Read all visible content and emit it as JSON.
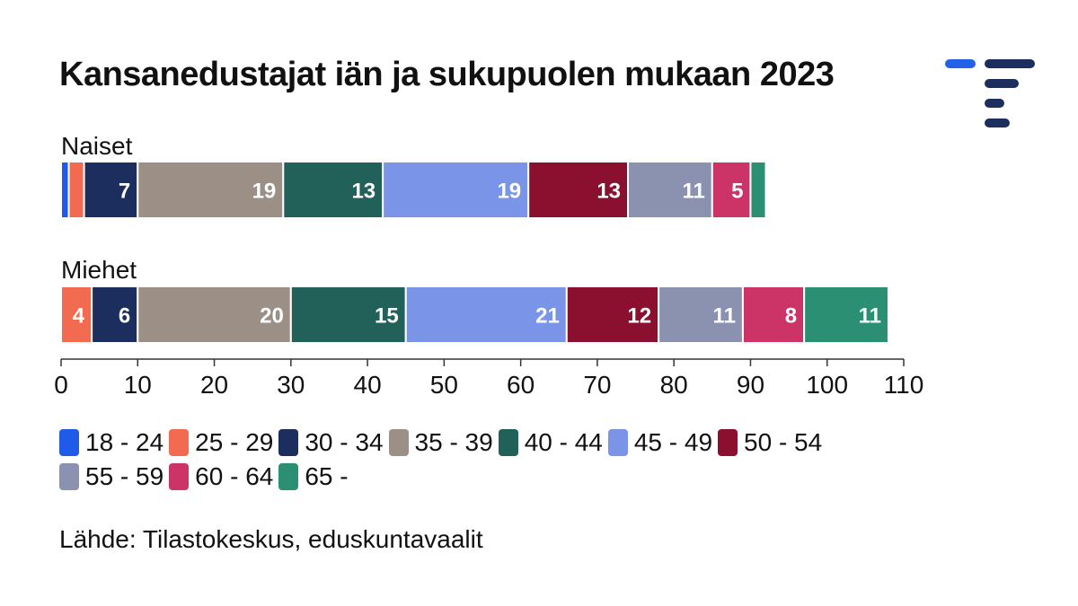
{
  "title": "Kansanedustajat iän ja sukupuolen mukaan 2023",
  "source": "Lähde: Tilastokeskus, eduskuntavaalit",
  "logo_icon": "statistics-finland-logo-icon",
  "colors": {
    "logo_accent": "#2262e8",
    "logo_main": "#1b2e5e"
  },
  "chart_data": {
    "type": "bar",
    "orientation": "horizontal",
    "stacked": true,
    "title": "Kansanedustajat iän ja sukupuolen mukaan 2023",
    "xlabel": "",
    "ylabel": "",
    "xlim": [
      0,
      110
    ],
    "xticks": [
      0,
      10,
      20,
      30,
      40,
      50,
      60,
      70,
      80,
      90,
      100,
      110
    ],
    "grid": false,
    "legend_placement": "bottom",
    "categories": [
      "Naiset",
      "Miehet"
    ],
    "series": [
      {
        "name": "18 - 24",
        "color": "#1f5be8",
        "values": [
          1,
          0
        ],
        "labels": [
          "",
          ""
        ]
      },
      {
        "name": "25 - 29",
        "color": "#f26b50",
        "values": [
          2,
          4
        ],
        "labels": [
          "",
          "4"
        ]
      },
      {
        "name": "30 - 34",
        "color": "#1b2e5e",
        "values": [
          7,
          6
        ],
        "labels": [
          "7",
          "6"
        ]
      },
      {
        "name": "35 - 39",
        "color": "#9b8f86",
        "values": [
          19,
          20
        ],
        "labels": [
          "19",
          "20"
        ]
      },
      {
        "name": "40 - 44",
        "color": "#22615a",
        "values": [
          13,
          15
        ],
        "labels": [
          "13",
          "15"
        ]
      },
      {
        "name": "45 - 49",
        "color": "#7a95e8",
        "values": [
          19,
          21
        ],
        "labels": [
          "19",
          "21"
        ]
      },
      {
        "name": "50 - 54",
        "color": "#8b1030",
        "values": [
          13,
          12
        ],
        "labels": [
          "13",
          "12"
        ]
      },
      {
        "name": "55 - 59",
        "color": "#8a92b0",
        "values": [
          11,
          11
        ],
        "labels": [
          "11",
          "11"
        ]
      },
      {
        "name": "60 - 64",
        "color": "#cc3366",
        "values": [
          5,
          8
        ],
        "labels": [
          "5",
          "8"
        ]
      },
      {
        "name": "65 -",
        "color": "#2a8f73",
        "values": [
          2,
          11
        ],
        "labels": [
          "",
          "11"
        ]
      }
    ]
  }
}
